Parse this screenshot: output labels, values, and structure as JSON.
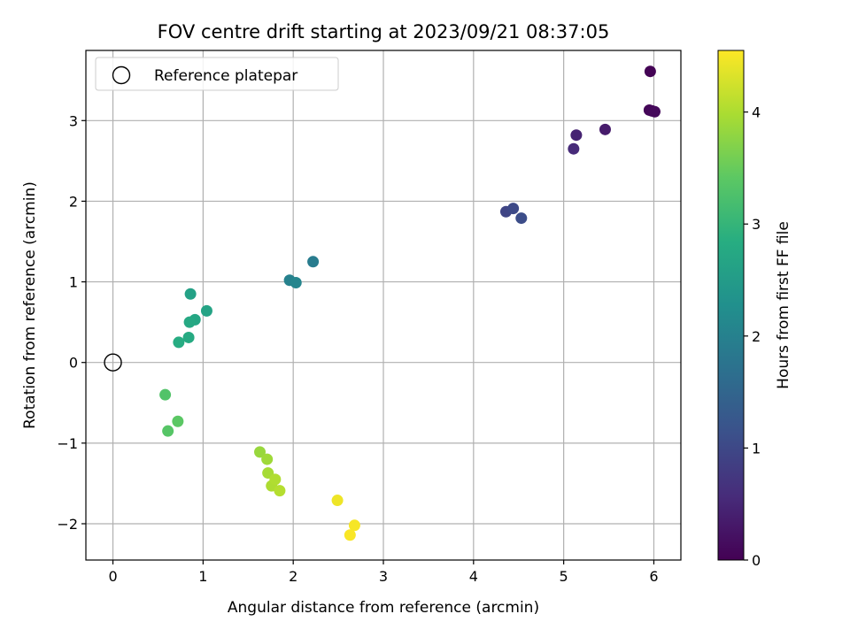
{
  "chart_data": {
    "type": "scatter",
    "title": "FOV centre drift starting at 2023/09/21 08:37:05",
    "xlabel": "Angular distance from reference (arcmin)",
    "ylabel": "Rotation from reference (arcmin)",
    "xlim": [
      -0.3,
      6.3
    ],
    "ylim": [
      -2.45,
      3.87
    ],
    "xticks": [
      0,
      1,
      2,
      3,
      4,
      5,
      6
    ],
    "yticks": [
      -2,
      -1,
      0,
      1,
      2,
      3
    ],
    "xtick_labels": [
      "0",
      "1",
      "2",
      "3",
      "4",
      "5",
      "6"
    ],
    "ytick_labels": [
      "−2",
      "−1",
      "0",
      "1",
      "2",
      "3"
    ],
    "grid": true,
    "legend": {
      "location": "top-left",
      "entries": [
        "Reference platepar"
      ]
    },
    "reference_point": {
      "x": 0,
      "y": 0,
      "label": "Reference platepar"
    },
    "colorbar": {
      "label": "Hours from first FF file",
      "colormap": "viridis",
      "range": [
        0,
        4.55
      ],
      "ticks": [
        0,
        1,
        2,
        3,
        4
      ],
      "tick_labels": [
        "0",
        "1",
        "2",
        "3",
        "4"
      ]
    },
    "points": [
      {
        "x": 5.96,
        "y": 3.61,
        "hours": 0.02
      },
      {
        "x": 5.95,
        "y": 3.13,
        "hours": 0.05
      },
      {
        "x": 5.98,
        "y": 3.12,
        "hours": 0.08
      },
      {
        "x": 6.01,
        "y": 3.11,
        "hours": 0.11
      },
      {
        "x": 5.46,
        "y": 2.89,
        "hours": 0.35
      },
      {
        "x": 5.14,
        "y": 2.82,
        "hours": 0.45
      },
      {
        "x": 5.11,
        "y": 2.65,
        "hours": 0.55
      },
      {
        "x": 4.36,
        "y": 1.87,
        "hours": 0.95
      },
      {
        "x": 4.44,
        "y": 1.91,
        "hours": 1.02
      },
      {
        "x": 4.53,
        "y": 1.79,
        "hours": 1.08
      },
      {
        "x": 2.22,
        "y": 1.25,
        "hours": 1.9
      },
      {
        "x": 1.96,
        "y": 1.02,
        "hours": 2.0
      },
      {
        "x": 2.03,
        "y": 0.99,
        "hours": 2.08
      },
      {
        "x": 0.86,
        "y": 0.85,
        "hours": 2.6
      },
      {
        "x": 1.04,
        "y": 0.64,
        "hours": 2.65
      },
      {
        "x": 0.91,
        "y": 0.53,
        "hours": 2.7
      },
      {
        "x": 0.85,
        "y": 0.5,
        "hours": 2.74
      },
      {
        "x": 0.84,
        "y": 0.31,
        "hours": 2.78
      },
      {
        "x": 0.73,
        "y": 0.25,
        "hours": 2.82
      },
      {
        "x": 0.58,
        "y": -0.4,
        "hours": 3.3
      },
      {
        "x": 0.61,
        "y": -0.85,
        "hours": 3.35
      },
      {
        "x": 0.72,
        "y": -0.73,
        "hours": 3.4
      },
      {
        "x": 1.63,
        "y": -1.11,
        "hours": 3.85
      },
      {
        "x": 1.71,
        "y": -1.2,
        "hours": 3.9
      },
      {
        "x": 1.72,
        "y": -1.37,
        "hours": 3.95
      },
      {
        "x": 1.76,
        "y": -1.53,
        "hours": 4.0
      },
      {
        "x": 1.8,
        "y": -1.45,
        "hours": 4.02
      },
      {
        "x": 1.85,
        "y": -1.59,
        "hours": 4.06
      },
      {
        "x": 2.49,
        "y": -1.71,
        "hours": 4.45
      },
      {
        "x": 2.68,
        "y": -2.02,
        "hours": 4.5
      },
      {
        "x": 2.63,
        "y": -2.14,
        "hours": 4.52
      }
    ]
  }
}
